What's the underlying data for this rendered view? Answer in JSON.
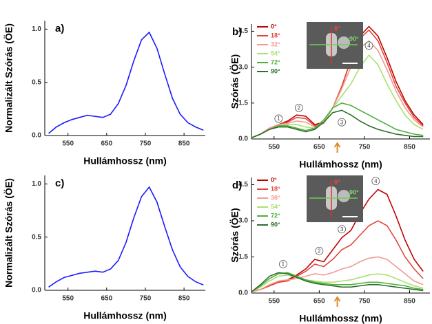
{
  "chart_data": [
    {
      "type": "line",
      "panel_label": "a)",
      "xlabel": "Hullámhossz (nm)",
      "ylabel": "Normalizált Szórás (ÖE)",
      "xlim": [
        490,
        905
      ],
      "xticks": [
        550,
        650,
        750,
        850
      ],
      "ylim": [
        0,
        1.08
      ],
      "yticks": [
        {
          "value": 0,
          "label": "0.0"
        },
        0.5,
        {
          "value": 1,
          "label": "1.0"
        }
      ],
      "x": [
        500,
        520,
        540,
        560,
        580,
        600,
        620,
        640,
        660,
        680,
        700,
        720,
        740,
        760,
        780,
        800,
        820,
        840,
        860,
        880,
        900
      ],
      "series": [
        {
          "color": "#1a1aff",
          "values": [
            0.02,
            0.08,
            0.12,
            0.15,
            0.17,
            0.19,
            0.18,
            0.17,
            0.2,
            0.3,
            0.47,
            0.7,
            0.9,
            0.97,
            0.82,
            0.58,
            0.35,
            0.2,
            0.12,
            0.08,
            0.05
          ]
        }
      ]
    },
    {
      "type": "line",
      "panel_label": "b)",
      "xlabel": "Hullámhossz (nm)",
      "ylabel": "Szórás (ÖE)",
      "xlim": [
        500,
        895
      ],
      "xticks": [
        550,
        650,
        750,
        850
      ],
      "ylim": [
        0,
        4.8
      ],
      "yticks": [
        {
          "value": 0,
          "label": "0.0"
        },
        1.5,
        {
          "value": 3,
          "label": "3.0"
        },
        4.5
      ],
      "legend": "upper left",
      "arrow_x": 690,
      "inset_labels": [
        "0°",
        "90°"
      ],
      "annotations": [
        {
          "text": "1",
          "x": 560,
          "y": 0.85
        },
        {
          "text": "2",
          "x": 605,
          "y": 1.3
        },
        {
          "text": "3",
          "x": 700,
          "y": 0.7
        },
        {
          "text": "4",
          "x": 760,
          "y": 3.9
        }
      ],
      "x": [
        500,
        520,
        540,
        560,
        580,
        600,
        620,
        640,
        660,
        680,
        700,
        720,
        740,
        760,
        780,
        800,
        820,
        840,
        860,
        880
      ],
      "series": [
        {
          "name": "0°",
          "color": "#c00000",
          "values": [
            0.05,
            0.2,
            0.45,
            0.6,
            0.75,
            1.0,
            0.95,
            0.6,
            0.7,
            1.3,
            2.2,
            3.3,
            4.3,
            4.7,
            4.3,
            3.4,
            2.4,
            1.6,
            1.0,
            0.6
          ]
        },
        {
          "name": "18°",
          "color": "#e0463c",
          "values": [
            0.05,
            0.2,
            0.45,
            0.6,
            0.7,
            0.9,
            0.85,
            0.55,
            0.65,
            1.3,
            2.2,
            3.3,
            4.2,
            4.55,
            4.1,
            3.2,
            2.2,
            1.5,
            0.9,
            0.55
          ]
        },
        {
          "name": "32°",
          "color": "#f29a92",
          "values": [
            0.05,
            0.2,
            0.45,
            0.6,
            0.65,
            0.75,
            0.7,
            0.5,
            0.65,
            1.3,
            2.1,
            3.0,
            3.8,
            4.1,
            3.7,
            2.9,
            2.0,
            1.3,
            0.8,
            0.5
          ]
        },
        {
          "name": "54°",
          "color": "#a8e070",
          "values": [
            0.05,
            0.2,
            0.4,
            0.55,
            0.6,
            0.6,
            0.5,
            0.45,
            0.7,
            1.3,
            1.8,
            2.3,
            3.0,
            3.5,
            3.1,
            2.3,
            1.6,
            1.0,
            0.6,
            0.4
          ]
        },
        {
          "name": "72°",
          "color": "#4caf3a",
          "values": [
            0.05,
            0.2,
            0.4,
            0.55,
            0.55,
            0.45,
            0.35,
            0.45,
            0.8,
            1.3,
            1.5,
            1.4,
            1.2,
            1.0,
            0.8,
            0.6,
            0.4,
            0.3,
            0.2,
            0.15
          ]
        },
        {
          "name": "90°",
          "color": "#2e6b2e",
          "values": [
            0.05,
            0.2,
            0.4,
            0.5,
            0.5,
            0.4,
            0.3,
            0.4,
            0.7,
            1.1,
            1.2,
            1.0,
            0.75,
            0.55,
            0.4,
            0.3,
            0.2,
            0.15,
            0.1,
            0.1
          ]
        }
      ]
    },
    {
      "type": "line",
      "panel_label": "c)",
      "xlabel": "Hullámhossz (nm)",
      "ylabel": "Normalizált Szórás (ÖE)",
      "xlim": [
        490,
        905
      ],
      "xticks": [
        550,
        650,
        750,
        850
      ],
      "ylim": [
        0,
        1.08
      ],
      "yticks": [
        {
          "value": 0,
          "label": "0.0"
        },
        0.5,
        {
          "value": 1,
          "label": "1.0"
        }
      ],
      "x": [
        500,
        520,
        540,
        560,
        580,
        600,
        620,
        640,
        660,
        680,
        700,
        720,
        740,
        760,
        780,
        800,
        820,
        840,
        860,
        880,
        900
      ],
      "series": [
        {
          "color": "#1a1aff",
          "values": [
            0.03,
            0.08,
            0.12,
            0.14,
            0.16,
            0.17,
            0.18,
            0.17,
            0.2,
            0.28,
            0.45,
            0.68,
            0.88,
            0.97,
            0.83,
            0.6,
            0.38,
            0.22,
            0.13,
            0.08,
            0.05
          ]
        }
      ]
    },
    {
      "type": "line",
      "panel_label": "d)",
      "xlabel": "Hullámhossz (nm)",
      "ylabel": "Szórás (ÖE)",
      "xlim": [
        500,
        895
      ],
      "xticks": [
        550,
        650,
        750,
        850
      ],
      "ylim": [
        0,
        4.8
      ],
      "yticks": [
        {
          "value": 0,
          "label": "0.0"
        },
        1.5,
        {
          "value": 3,
          "label": "3.0"
        },
        4.5
      ],
      "legend": "upper left",
      "arrow_x": 690,
      "inset_labels": [
        "0°",
        "90°"
      ],
      "annotations": [
        {
          "text": "1",
          "x": 570,
          "y": 1.2
        },
        {
          "text": "2",
          "x": 650,
          "y": 1.75
        },
        {
          "text": "3",
          "x": 700,
          "y": 2.65
        },
        {
          "text": "4",
          "x": 775,
          "y": 4.65
        }
      ],
      "x": [
        500,
        520,
        540,
        560,
        580,
        600,
        620,
        640,
        660,
        680,
        700,
        720,
        740,
        760,
        780,
        800,
        820,
        840,
        860,
        880
      ],
      "series": [
        {
          "name": "0°",
          "color": "#c00000",
          "values": [
            0.05,
            0.15,
            0.3,
            0.45,
            0.55,
            0.75,
            1.0,
            1.4,
            1.3,
            1.8,
            2.3,
            2.6,
            3.3,
            3.9,
            4.3,
            4.1,
            3.2,
            2.2,
            1.4,
            0.9
          ]
        },
        {
          "name": "18°",
          "color": "#e0463c",
          "values": [
            0.05,
            0.15,
            0.3,
            0.45,
            0.5,
            0.7,
            0.9,
            1.2,
            1.1,
            1.4,
            1.8,
            2.0,
            2.4,
            2.8,
            3.0,
            2.8,
            2.2,
            1.5,
            1.0,
            0.6
          ]
        },
        {
          "name": "36°",
          "color": "#f29a92",
          "values": [
            0.05,
            0.15,
            0.35,
            0.5,
            0.55,
            0.6,
            0.7,
            0.8,
            0.75,
            0.85,
            1.0,
            1.1,
            1.3,
            1.45,
            1.5,
            1.4,
            1.1,
            0.8,
            0.5,
            0.35
          ]
        },
        {
          "name": "54°",
          "color": "#a8e070",
          "values": [
            0.05,
            0.25,
            0.5,
            0.7,
            0.75,
            0.65,
            0.55,
            0.5,
            0.45,
            0.45,
            0.5,
            0.55,
            0.65,
            0.75,
            0.8,
            0.75,
            0.6,
            0.45,
            0.3,
            0.2
          ]
        },
        {
          "name": "72°",
          "color": "#4caf3a",
          "values": [
            0.05,
            0.3,
            0.6,
            0.8,
            0.85,
            0.7,
            0.55,
            0.45,
            0.4,
            0.35,
            0.35,
            0.35,
            0.4,
            0.45,
            0.45,
            0.4,
            0.35,
            0.3,
            0.2,
            0.15
          ]
        },
        {
          "name": "90°",
          "color": "#2e6b2e",
          "values": [
            0.05,
            0.35,
            0.7,
            0.85,
            0.8,
            0.65,
            0.5,
            0.4,
            0.35,
            0.3,
            0.25,
            0.25,
            0.3,
            0.35,
            0.35,
            0.3,
            0.25,
            0.2,
            0.15,
            0.1
          ]
        }
      ]
    }
  ]
}
